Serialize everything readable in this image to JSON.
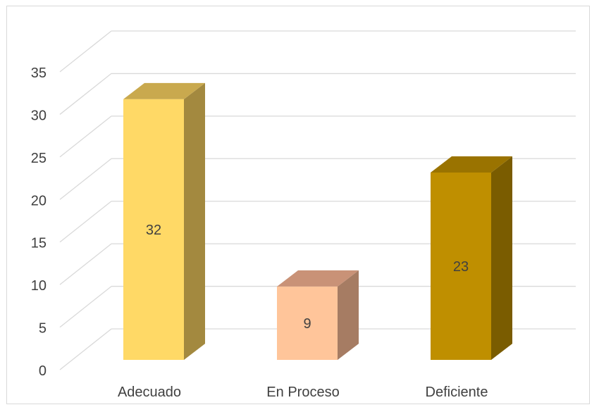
{
  "chart_data": {
    "type": "bar",
    "style": "3d-column",
    "categories": [
      "Adecuado",
      "En Proceso",
      "Deficiente"
    ],
    "values": [
      32,
      9,
      23
    ],
    "data_labels": [
      "32",
      "9",
      "23"
    ],
    "ylim": [
      0,
      35
    ],
    "yticks": [
      "0",
      "5",
      "10",
      "15",
      "20",
      "25",
      "30",
      "35"
    ],
    "title": "",
    "xlabel": "",
    "ylabel": "",
    "grid": true,
    "legend": "none",
    "colors": [
      {
        "front": "#FFD966",
        "side": "#A3893F",
        "top": "#C9A94E"
      },
      {
        "front": "#FFC59A",
        "side": "#A67C63",
        "top": "#C99277"
      },
      {
        "front": "#BF8F00",
        "side": "#7A5C00",
        "top": "#9A7300"
      }
    ],
    "grid_color": "#d9d9d9"
  }
}
